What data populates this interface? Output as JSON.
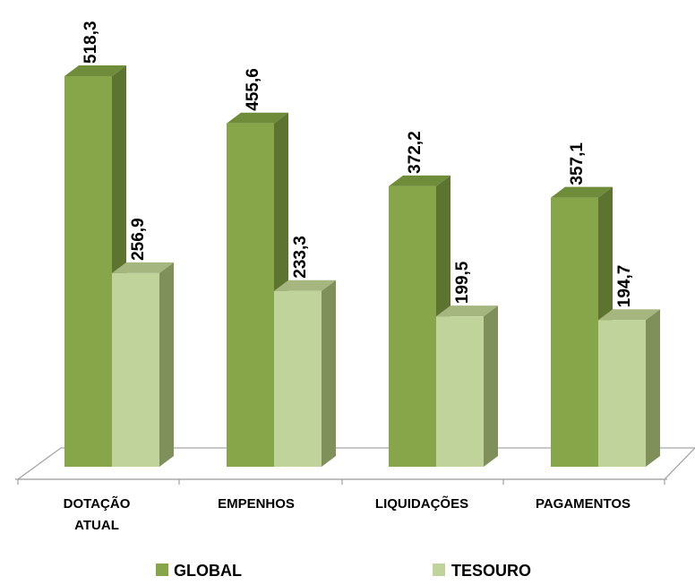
{
  "chart_data": {
    "type": "bar",
    "categories": [
      [
        "DOTAÇÃO",
        "ATUAL"
      ],
      [
        "EMPENHOS"
      ],
      [
        "LIQUIDAÇÕES"
      ],
      [
        "PAGAMENTOS"
      ]
    ],
    "series": [
      {
        "name": "GLOBAL",
        "values": [
          518.3,
          455.6,
          372.2,
          357.1
        ],
        "labels": [
          "518,3",
          "455,6",
          "372,2",
          "357,1"
        ]
      },
      {
        "name": "TESOURO",
        "values": [
          256.9,
          233.3,
          199.5,
          194.7
        ],
        "labels": [
          "256,9",
          "233,3",
          "199,5",
          "194,7"
        ]
      }
    ],
    "ylim": [
      0,
      518.3
    ],
    "grid": false,
    "legend_position": "bottom",
    "colors": {
      "global_front": "#87a64a",
      "global_side": "#5c7430",
      "global_top": "#6f8c3a",
      "tesouro_front": "#c0d39a",
      "tesouro_side": "#80905a",
      "tesouro_top": "#a5b67e",
      "floor_stroke": "#a6a6a6"
    }
  }
}
